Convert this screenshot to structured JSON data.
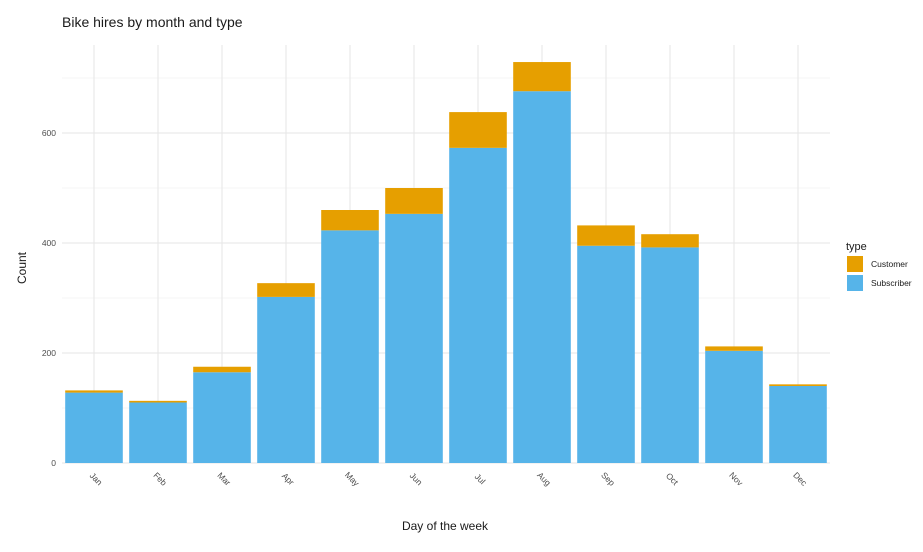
{
  "chart_data": {
    "type": "bar",
    "stacked": true,
    "title": "Bike hires by month and type",
    "xlabel": "Day of the week",
    "ylabel": "Count",
    "categories": [
      "Jan",
      "Feb",
      "Mar",
      "Apr",
      "May",
      "Jun",
      "Jul",
      "Aug",
      "Sep",
      "Oct",
      "Nov",
      "Dec"
    ],
    "series": [
      {
        "name": "Subscriber",
        "color": "#56B4E9",
        "values": [
          128,
          110,
          165,
          302,
          423,
          453,
          573,
          676,
          395,
          392,
          204,
          140
        ]
      },
      {
        "name": "Customer",
        "color": "#E69F00",
        "values": [
          4,
          3,
          10,
          25,
          37,
          47,
          65,
          53,
          37,
          24,
          8,
          3
        ]
      }
    ],
    "ylim": [
      0,
      760
    ],
    "y_ticks": [
      0,
      200,
      400,
      600
    ],
    "grid": true,
    "legend": {
      "title": "type",
      "position": "right",
      "entries": [
        {
          "label": "Customer",
          "color": "#E69F00"
        },
        {
          "label": "Subscriber",
          "color": "#56B4E9"
        }
      ]
    }
  }
}
